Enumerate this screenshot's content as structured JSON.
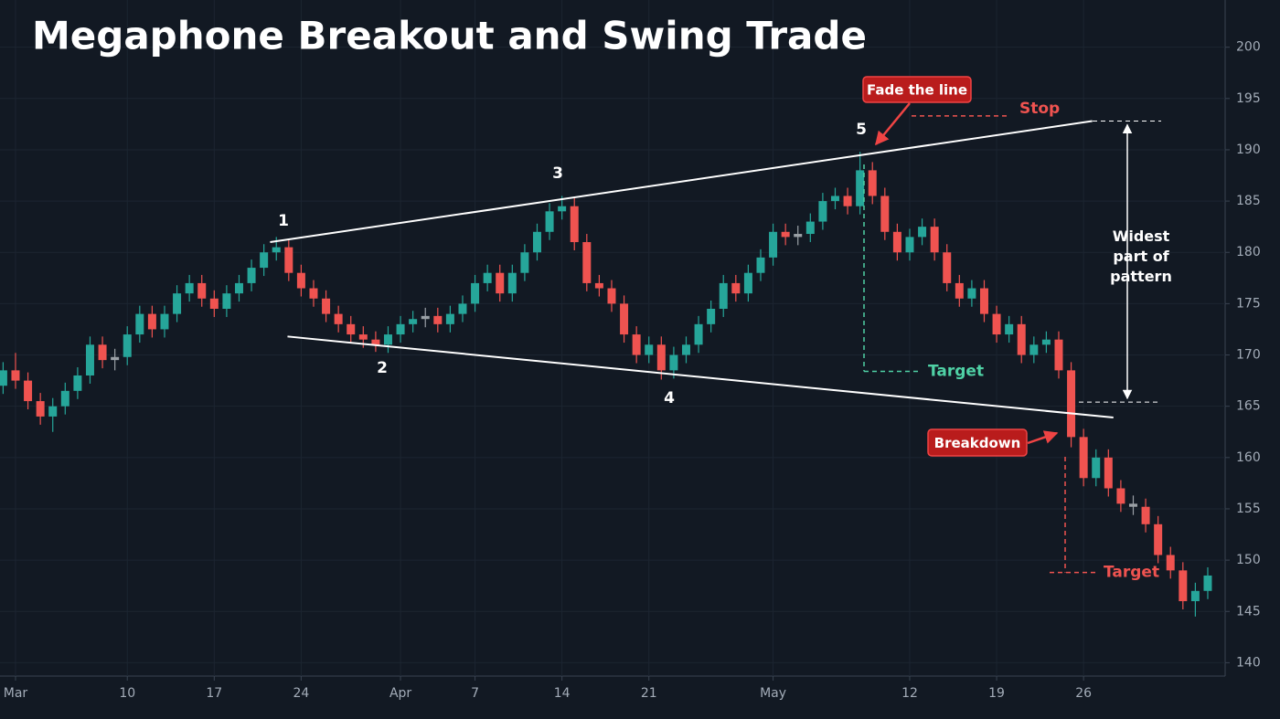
{
  "chart_data": {
    "type": "candlestick",
    "title": "Megaphone Breakout and Swing Trade",
    "up_color": "#26a69a",
    "down_color": "#ef5350",
    "flat_color": "#9aa0a6",
    "grid": true,
    "x": [
      -1,
      0,
      1,
      2,
      3,
      4,
      5,
      6,
      7,
      8,
      9,
      10,
      11,
      12,
      13,
      14,
      15,
      16,
      17,
      18,
      19,
      20,
      21,
      22,
      23,
      24,
      25,
      26,
      27,
      28,
      29,
      30,
      31,
      32,
      33,
      34,
      35,
      36,
      37,
      38,
      39,
      40,
      41,
      42,
      43,
      44,
      45,
      46,
      47,
      48,
      49,
      50,
      51,
      52,
      53,
      54,
      55,
      56,
      57,
      58,
      59,
      60,
      61,
      62,
      63,
      64,
      65,
      66,
      67,
      68,
      69,
      70,
      71,
      72,
      73,
      74,
      75,
      76,
      77,
      78,
      79,
      80,
      81,
      82,
      83,
      84,
      85,
      86,
      87,
      88,
      89,
      90,
      91,
      92,
      93,
      94,
      95,
      96
    ],
    "open": [
      167,
      168.5,
      167.5,
      165.5,
      164,
      165,
      166.5,
      168,
      171,
      169.5,
      169.8,
      172,
      174,
      172.5,
      174,
      176,
      177,
      175.5,
      174.5,
      176,
      177,
      178.5,
      180,
      180.5,
      178,
      176.5,
      175.5,
      174,
      173,
      172,
      171.5,
      171,
      172,
      173,
      173.5,
      173.8,
      173,
      174,
      175,
      177,
      178,
      176,
      178,
      180,
      182,
      184,
      184.5,
      181,
      177,
      176.5,
      175,
      172,
      170,
      171,
      168.5,
      170,
      171,
      173,
      174.5,
      177,
      176,
      178,
      179.5,
      182,
      181.5,
      181.8,
      183,
      185,
      185.5,
      184.5,
      188,
      185.5,
      182,
      180,
      181.5,
      182.5,
      180,
      177,
      175.5,
      176.5,
      174,
      172,
      173,
      170,
      171,
      171.5,
      168.5,
      162,
      158,
      160,
      157,
      155.5,
      155.2,
      153.5,
      150.5,
      149,
      146,
      147
    ],
    "high": [
      169.3,
      170.2,
      168.3,
      166.3,
      165.8,
      167.3,
      168.8,
      171.8,
      171.8,
      170.6,
      172.8,
      174.8,
      174.8,
      174.8,
      176.8,
      177.8,
      177.8,
      176.3,
      176.8,
      177.8,
      179.3,
      180.8,
      181.5,
      181.3,
      178.8,
      177.3,
      176.3,
      174.8,
      173.8,
      172.8,
      172.3,
      172.8,
      173.8,
      174.3,
      174.6,
      174.6,
      174.8,
      175.8,
      177.8,
      178.8,
      178.8,
      178.8,
      180.8,
      182.8,
      184.8,
      185.5,
      185.3,
      181.8,
      177.8,
      177.3,
      175.8,
      172.8,
      171.8,
      171.8,
      170.8,
      171.8,
      173.8,
      175.3,
      177.8,
      177.8,
      178.8,
      180.3,
      182.8,
      182.8,
      182.6,
      183.8,
      185.8,
      186.3,
      186.3,
      189.8,
      188.8,
      186.3,
      182.8,
      182.3,
      183.3,
      183.3,
      180.8,
      177.8,
      177.3,
      177.3,
      174.8,
      173.8,
      173.8,
      171.8,
      172.3,
      172.3,
      169.3,
      162.8,
      160.8,
      160.8,
      157.8,
      156.3,
      156,
      154.3,
      151.3,
      149.8,
      147.8,
      149.3
    ],
    "low": [
      166.2,
      166.7,
      164.7,
      163.2,
      162.5,
      164.2,
      165.7,
      167.2,
      168.7,
      168.5,
      169,
      171.2,
      171.7,
      171.7,
      173.2,
      175.2,
      174.7,
      173.7,
      173.7,
      175.2,
      176.2,
      177.7,
      179.2,
      177.2,
      175.7,
      174.7,
      173.2,
      172.2,
      171.2,
      170.7,
      170.3,
      170.2,
      171.2,
      172.2,
      172.7,
      172.2,
      172.2,
      173.2,
      174.2,
      176.2,
      175.2,
      175.2,
      177.2,
      179.2,
      181.2,
      183.2,
      180.2,
      176.2,
      175.7,
      174.2,
      171.2,
      169.2,
      169.2,
      167.6,
      167.7,
      169.2,
      170.2,
      172.2,
      173.7,
      175.2,
      175.2,
      177.2,
      178.7,
      180.7,
      180.7,
      181,
      182.2,
      184.2,
      183.7,
      183.7,
      184.7,
      181.2,
      179.2,
      179.2,
      180.7,
      179.2,
      176.2,
      174.7,
      174.7,
      173.2,
      171.2,
      171.2,
      169.2,
      169.2,
      170.2,
      167.7,
      161,
      157.2,
      157.2,
      156.2,
      154.7,
      154.4,
      152.7,
      149.7,
      148.2,
      145.2,
      144.5,
      146.2
    ],
    "close": [
      168.5,
      167.5,
      165.5,
      164,
      165,
      166.5,
      168,
      171,
      169.5,
      169.8,
      172,
      174,
      172.5,
      174,
      176,
      177,
      175.5,
      174.5,
      176,
      177,
      178.5,
      180,
      180.5,
      178,
      176.5,
      175.5,
      174,
      173,
      172,
      171.5,
      171,
      172,
      173,
      173.5,
      173.8,
      173,
      174,
      175,
      177,
      178,
      176,
      178,
      180,
      182,
      184,
      184.5,
      181,
      177,
      176.5,
      175,
      172,
      170,
      171,
      168.5,
      170,
      171,
      173,
      174.5,
      177,
      176,
      178,
      179.5,
      182,
      181.5,
      181.8,
      183,
      185,
      185.5,
      184.5,
      188,
      185.5,
      182,
      180,
      181.5,
      182.5,
      180,
      177,
      175.5,
      176.5,
      174,
      172,
      173,
      170,
      171,
      171.5,
      168.5,
      162,
      158,
      160,
      157,
      155.5,
      155.2,
      153.5,
      150.5,
      149,
      146,
      147,
      148.5
    ],
    "xlim": [
      -1.25,
      97.4
    ],
    "xticks": [
      {
        "value": 0,
        "label": "Mar"
      },
      {
        "value": 9,
        "label": "10"
      },
      {
        "value": 16,
        "label": "17"
      },
      {
        "value": 23,
        "label": "24"
      },
      {
        "value": 31,
        "label": "Apr"
      },
      {
        "value": 37,
        "label": "7"
      },
      {
        "value": 44,
        "label": "14"
      },
      {
        "value": 51,
        "label": "21"
      },
      {
        "value": 61,
        "label": "May"
      },
      {
        "value": 72,
        "label": "12"
      },
      {
        "value": 79,
        "label": "19"
      },
      {
        "value": 86,
        "label": "26"
      }
    ],
    "ylim": [
      138.7,
      204.6
    ],
    "yticks": [
      140,
      145,
      150,
      155,
      160,
      165,
      170,
      175,
      180,
      185,
      190,
      195,
      200
    ],
    "trendlines": [
      {
        "color": "#ffffff",
        "x": [
          20.5,
          86.7
        ],
        "y": [
          181,
          192.8
        ]
      },
      {
        "color": "#ffffff",
        "x": [
          21.9,
          88.4
        ],
        "y": [
          171.8,
          163.9
        ]
      }
    ],
    "pivot_labels": [
      "1",
      "2",
      "3",
      "4",
      "5"
    ],
    "callouts": [
      {
        "text": "Fade the line",
        "color": "#b91c1c"
      },
      {
        "text": "Breakdown",
        "color": "#b91c1c"
      }
    ],
    "stop": {
      "label": "Stop",
      "value": 193.3,
      "color": "#ef5350"
    },
    "targets": [
      {
        "label": "Target",
        "value": 168.4,
        "color": "#4fd1a5"
      },
      {
        "label": "Target",
        "value": 148.8,
        "color": "#ef5350"
      }
    ],
    "widest": {
      "label": "Widest part of pattern",
      "top": 192.8,
      "bottom": 165.4
    }
  }
}
